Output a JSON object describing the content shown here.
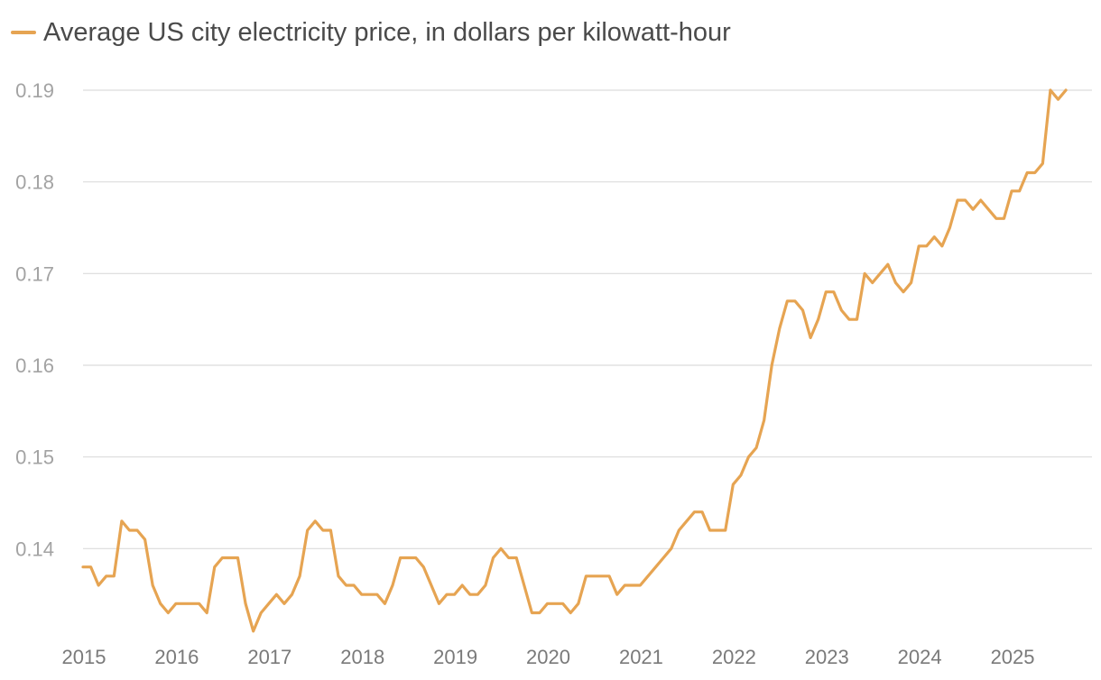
{
  "chart_data": {
    "type": "line",
    "title": "",
    "xlabel": "",
    "ylabel": "",
    "legend": [
      {
        "label": "Average US city electricity price, in dollars per kilowatt-hour",
        "color": "#e6a452"
      }
    ],
    "grid": true,
    "ylim": [
      0.13,
      0.19
    ],
    "yticks": [
      0.14,
      0.15,
      0.16,
      0.17,
      0.18,
      0.19
    ],
    "ytick_labels": [
      "0.14",
      "0.15",
      "0.16",
      "0.17",
      "0.18",
      "0.19"
    ],
    "xlim": [
      2015,
      2025.67
    ],
    "xticks": [
      2015,
      2016,
      2017,
      2018,
      2019,
      2020,
      2021,
      2022,
      2023,
      2024,
      2025
    ],
    "xtick_labels": [
      "2015",
      "2016",
      "2017",
      "2018",
      "2019",
      "2020",
      "2021",
      "2022",
      "2023",
      "2024",
      "2025"
    ],
    "series": [
      {
        "name": "Average US city electricity price, in dollars per kilowatt-hour",
        "color": "#e6a452",
        "start_year": 2015,
        "step_months": 1,
        "values": [
          0.138,
          0.138,
          0.136,
          0.137,
          0.137,
          0.143,
          0.142,
          0.142,
          0.141,
          0.136,
          0.134,
          0.133,
          0.134,
          0.134,
          0.134,
          0.134,
          0.133,
          0.138,
          0.139,
          0.139,
          0.139,
          0.134,
          0.131,
          0.133,
          0.134,
          0.135,
          0.134,
          0.135,
          0.137,
          0.142,
          0.143,
          0.142,
          0.142,
          0.137,
          0.136,
          0.136,
          0.135,
          0.135,
          0.135,
          0.134,
          0.136,
          0.139,
          0.139,
          0.139,
          0.138,
          0.136,
          0.134,
          0.135,
          0.135,
          0.136,
          0.135,
          0.135,
          0.136,
          0.139,
          0.14,
          0.139,
          0.139,
          0.136,
          0.133,
          0.133,
          0.134,
          0.134,
          0.134,
          0.133,
          0.134,
          0.137,
          0.137,
          0.137,
          0.137,
          0.135,
          0.136,
          0.136,
          0.136,
          0.137,
          0.138,
          0.139,
          0.14,
          0.142,
          0.143,
          0.144,
          0.144,
          0.142,
          0.142,
          0.142,
          0.147,
          0.148,
          0.15,
          0.151,
          0.154,
          0.16,
          0.164,
          0.167,
          0.167,
          0.166,
          0.163,
          0.165,
          0.168,
          0.168,
          0.166,
          0.165,
          0.165,
          0.17,
          0.169,
          0.17,
          0.171,
          0.169,
          0.168,
          0.169,
          0.173,
          0.173,
          0.174,
          0.173,
          0.175,
          0.178,
          0.178,
          0.177,
          0.178,
          0.177,
          0.176,
          0.176,
          0.179,
          0.179,
          0.181,
          0.181,
          0.182,
          0.19,
          0.189,
          0.19
        ]
      }
    ]
  }
}
